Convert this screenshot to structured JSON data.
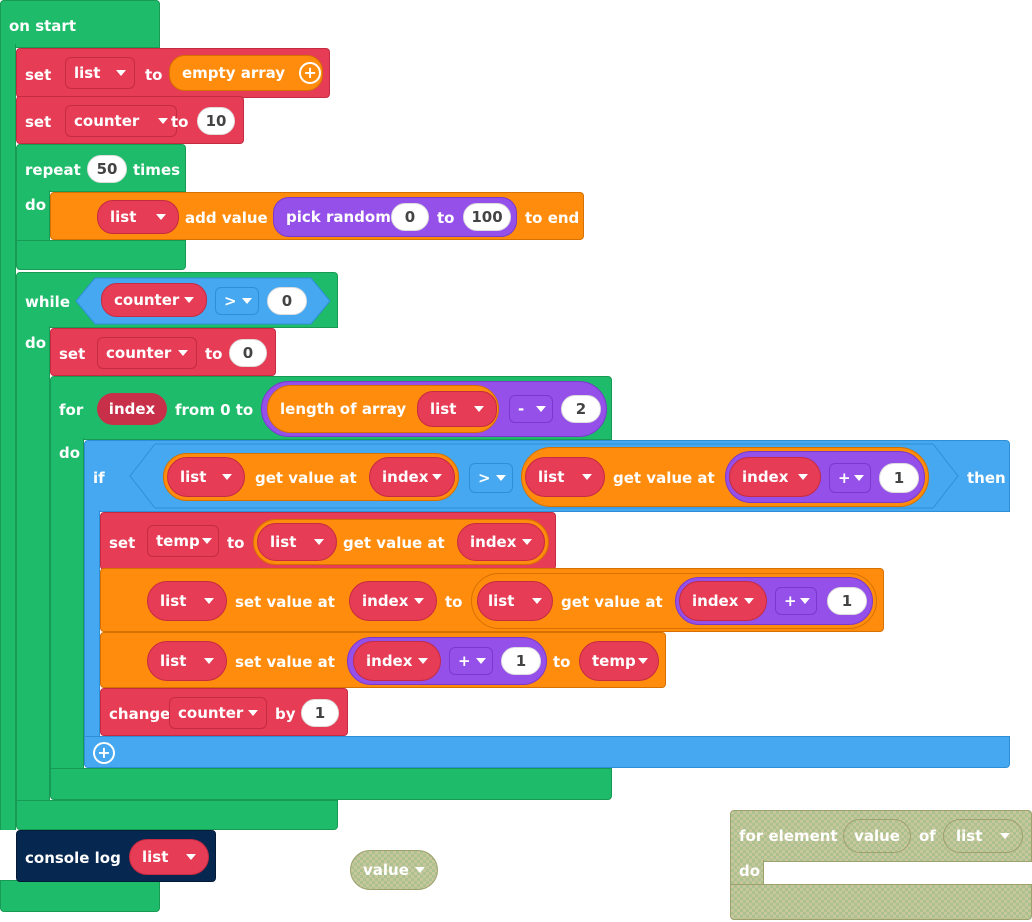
{
  "workspace": {
    "on_start": "on start",
    "set": "set",
    "to": "to",
    "repeat": "repeat",
    "times": "times",
    "do": "do",
    "while": "while",
    "for": "for",
    "from_0_to": "from 0 to",
    "if": "if",
    "then": "then",
    "change": "change",
    "by": "by",
    "console_log": "console log",
    "add_value": "add value",
    "to_end": "to end",
    "pick_random": "pick random",
    "empty_array": "empty array",
    "length_of_array": "length of array",
    "get_value_at": "get value at",
    "set_value_at": "set value at",
    "for_element": "for element",
    "of": "of"
  },
  "vars": {
    "list": "list",
    "counter": "counter",
    "index": "index",
    "temp": "temp",
    "value": "value"
  },
  "ops": {
    "gt": ">",
    "minus": "-",
    "plus": "+"
  },
  "numbers": {
    "counter_init": "10",
    "repeat_times": "50",
    "rand_min": "0",
    "rand_max": "100",
    "while_cmp": "0",
    "counter_reset": "0",
    "len_minus": "2",
    "one_a": "1",
    "one_b": "1",
    "one_c": "1",
    "change_by": "1"
  },
  "colors": {
    "loops": "#1ebc6a",
    "variables": "#e63c55",
    "arrays": "#ff8c0d",
    "math": "#9450e8",
    "logic": "#45a8f0",
    "console": "#06274f"
  }
}
